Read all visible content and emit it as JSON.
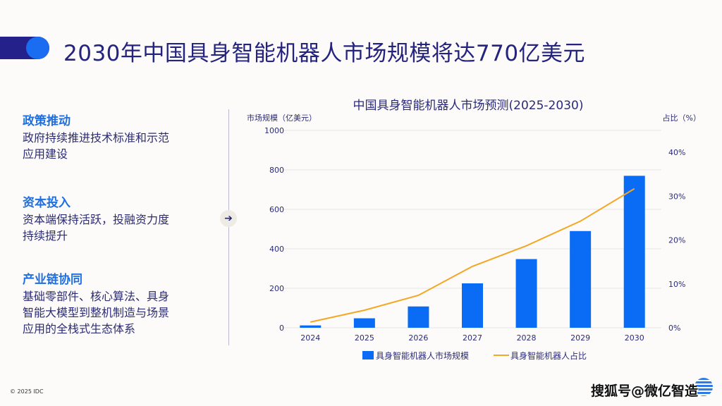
{
  "header": {
    "title": "2030年中国具身智能机器人市场规模将达770亿美元"
  },
  "sections": [
    {
      "heading": "政策推动",
      "lines": [
        "政府持续推进技术标准和示范",
        "应用建设"
      ]
    },
    {
      "heading": "资本投入",
      "lines": [
        "资本端保持活跃，投融资力度",
        "持续提升"
      ]
    },
    {
      "heading": "产业链协同",
      "lines": [
        "基础零部件、核心算法、具身",
        "智能大模型到整机制造与场景",
        "应用的全栈式生态体系"
      ]
    }
  ],
  "arrow_icon": "arrow-right-icon",
  "footer": {
    "copyright": "© 2025 IDC",
    "watermark": "搜狐号@微亿智造"
  },
  "chart_data": {
    "type": "bar+line",
    "title": "中国具身智能机器人市场预测(2025-2030)",
    "ylabel": "市场规模（亿美元）",
    "y2label": "占比（%）",
    "categories": [
      "2024",
      "2025",
      "2026",
      "2027",
      "2028",
      "2029",
      "2030"
    ],
    "ylim": [
      0,
      1000
    ],
    "yticks": [
      0,
      200,
      400,
      600,
      800,
      1000
    ],
    "y2lim": [
      0,
      45
    ],
    "y2ticks": [
      "0%",
      "10%",
      "20%",
      "30%",
      "40%"
    ],
    "y2tick_values": [
      0,
      10,
      20,
      30,
      40
    ],
    "grid": true,
    "legend": "bottom",
    "series": [
      {
        "name": "具身智能机器人市场规模",
        "type": "bar",
        "axis": "left",
        "color": "#0a6cf5",
        "values": [
          12,
          48,
          108,
          225,
          348,
          490,
          770
        ]
      },
      {
        "name": "具身智能机器人占比",
        "type": "line",
        "axis": "right",
        "color": "#f5a623",
        "values": [
          1.3,
          4.0,
          7.4,
          14.0,
          18.7,
          24.3,
          31.7
        ]
      }
    ]
  }
}
